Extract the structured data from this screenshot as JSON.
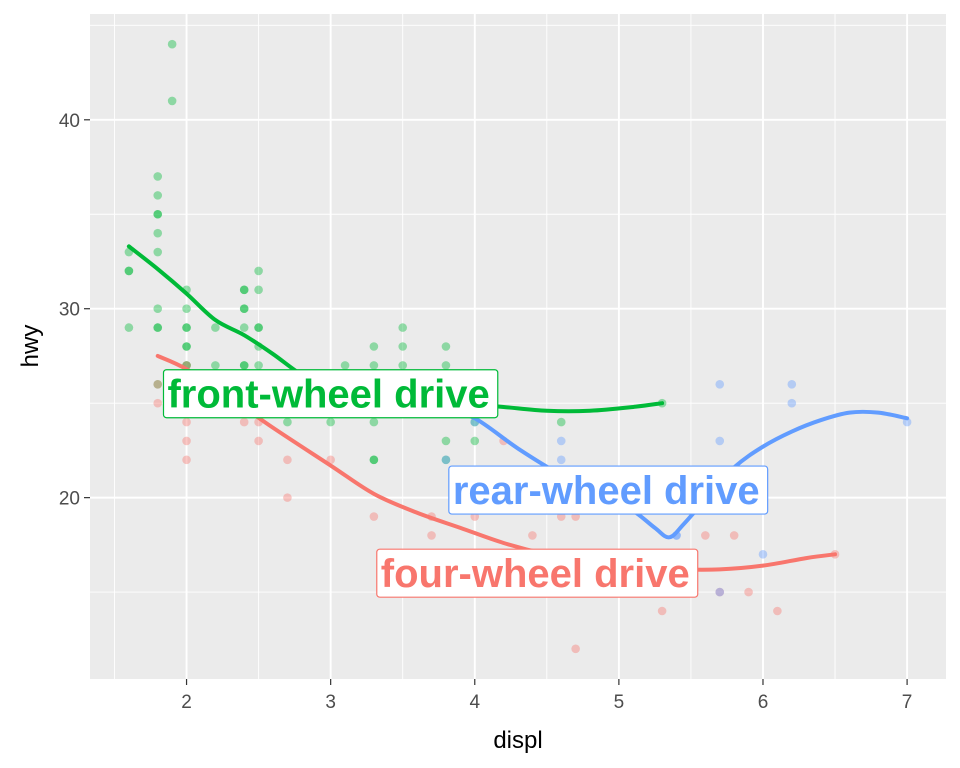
{
  "chart_data": {
    "type": "scatter",
    "xlabel": "displ",
    "ylabel": "hwy",
    "xlim": [
      1.33,
      7.27
    ],
    "ylim": [
      10.4,
      45.6
    ],
    "x_ticks": [
      2,
      3,
      4,
      5,
      6,
      7
    ],
    "y_ticks": [
      20,
      30,
      40
    ],
    "grid": true,
    "legend": "none",
    "series": [
      {
        "color": "#00BA38",
        "points": [
          [
            1.6,
            33
          ],
          [
            1.6,
            32
          ],
          [
            1.6,
            32
          ],
          [
            1.6,
            29
          ],
          [
            1.8,
            37
          ],
          [
            1.8,
            36
          ],
          [
            1.8,
            35
          ],
          [
            1.8,
            35
          ],
          [
            1.8,
            34
          ],
          [
            1.8,
            33
          ],
          [
            1.8,
            30
          ],
          [
            1.8,
            29
          ],
          [
            1.8,
            29
          ],
          [
            1.8,
            26
          ],
          [
            1.9,
            44
          ],
          [
            1.9,
            41
          ],
          [
            2.0,
            31
          ],
          [
            2.0,
            30
          ],
          [
            2.0,
            29
          ],
          [
            2.0,
            29
          ],
          [
            2.0,
            28
          ],
          [
            2.0,
            28
          ],
          [
            2.0,
            27
          ],
          [
            2.0,
            27
          ],
          [
            2.0,
            26
          ],
          [
            2.2,
            29
          ],
          [
            2.2,
            27
          ],
          [
            2.2,
            26
          ],
          [
            2.4,
            31
          ],
          [
            2.4,
            31
          ],
          [
            2.4,
            30
          ],
          [
            2.4,
            30
          ],
          [
            2.4,
            29
          ],
          [
            2.4,
            27
          ],
          [
            2.4,
            27
          ],
          [
            2.5,
            32
          ],
          [
            2.5,
            31
          ],
          [
            2.5,
            29
          ],
          [
            2.5,
            29
          ],
          [
            2.5,
            28
          ],
          [
            2.5,
            27
          ],
          [
            2.5,
            26
          ],
          [
            2.5,
            25
          ],
          [
            2.7,
            26
          ],
          [
            2.7,
            24
          ],
          [
            3.0,
            26
          ],
          [
            3.0,
            24
          ],
          [
            3.1,
            27
          ],
          [
            3.1,
            26
          ],
          [
            3.3,
            28
          ],
          [
            3.3,
            27
          ],
          [
            3.3,
            26
          ],
          [
            3.3,
            24
          ],
          [
            3.3,
            22
          ],
          [
            3.3,
            22
          ],
          [
            3.5,
            29
          ],
          [
            3.5,
            28
          ],
          [
            3.5,
            27
          ],
          [
            3.5,
            26
          ],
          [
            3.8,
            28
          ],
          [
            3.8,
            27
          ],
          [
            3.8,
            26
          ],
          [
            3.8,
            23
          ],
          [
            3.8,
            22
          ],
          [
            4.0,
            24
          ],
          [
            4.0,
            23
          ],
          [
            4.6,
            24
          ],
          [
            5.3,
            25
          ]
        ],
        "smooth": [
          [
            1.6,
            33.3
          ],
          [
            1.8,
            32.1
          ],
          [
            2.0,
            30.8
          ],
          [
            2.2,
            29.4
          ],
          [
            2.4,
            28.6
          ],
          [
            2.6,
            27.6
          ],
          [
            2.8,
            26.5
          ],
          [
            3.0,
            25.8
          ],
          [
            3.3,
            25.4
          ],
          [
            3.6,
            25.2
          ],
          [
            3.9,
            25.0
          ],
          [
            4.2,
            24.8
          ],
          [
            4.5,
            24.6
          ],
          [
            4.8,
            24.6
          ],
          [
            5.1,
            24.8
          ],
          [
            5.3,
            25.0
          ]
        ]
      },
      {
        "color": "#F8766D",
        "points": [
          [
            1.8,
            26
          ],
          [
            1.8,
            25
          ],
          [
            2.0,
            27
          ],
          [
            2.0,
            25
          ],
          [
            2.0,
            24
          ],
          [
            2.0,
            23
          ],
          [
            2.0,
            22
          ],
          [
            2.2,
            26
          ],
          [
            2.2,
            25
          ],
          [
            2.4,
            25
          ],
          [
            2.4,
            24
          ],
          [
            2.5,
            25
          ],
          [
            2.5,
            24
          ],
          [
            2.5,
            23
          ],
          [
            2.7,
            22
          ],
          [
            2.7,
            20
          ],
          [
            3.0,
            22
          ],
          [
            3.3,
            19
          ],
          [
            3.7,
            19
          ],
          [
            3.7,
            18
          ],
          [
            4.0,
            19
          ],
          [
            4.0,
            17
          ],
          [
            4.0,
            15
          ],
          [
            4.2,
            23
          ],
          [
            4.2,
            17
          ],
          [
            4.4,
            18
          ],
          [
            4.6,
            19
          ],
          [
            4.6,
            17
          ],
          [
            4.6,
            16
          ],
          [
            4.6,
            15
          ],
          [
            4.7,
            19
          ],
          [
            4.7,
            16
          ],
          [
            4.7,
            15
          ],
          [
            4.7,
            12
          ],
          [
            5.0,
            17
          ],
          [
            5.2,
            15
          ],
          [
            5.3,
            17
          ],
          [
            5.3,
            16
          ],
          [
            5.4,
            15
          ],
          [
            5.5,
            15
          ],
          [
            5.6,
            18
          ],
          [
            5.7,
            15
          ],
          [
            5.8,
            18
          ],
          [
            5.9,
            15
          ],
          [
            6.1,
            14
          ],
          [
            6.5,
            17
          ],
          [
            5.3,
            14
          ]
        ],
        "smooth": [
          [
            1.8,
            27.5
          ],
          [
            2.0,
            26.8
          ],
          [
            2.3,
            25.3
          ],
          [
            2.6,
            23.7
          ],
          [
            3.0,
            21.7
          ],
          [
            3.3,
            20.2
          ],
          [
            3.6,
            19.2
          ],
          [
            3.9,
            18.4
          ],
          [
            4.2,
            17.6
          ],
          [
            4.5,
            17.0
          ],
          [
            4.8,
            16.6
          ],
          [
            5.1,
            16.3
          ],
          [
            5.4,
            16.2
          ],
          [
            5.7,
            16.2
          ],
          [
            6.0,
            16.4
          ],
          [
            6.3,
            16.8
          ],
          [
            6.5,
            17.0
          ]
        ]
      },
      {
        "color": "#619CFF",
        "points": [
          [
            3.8,
            22
          ],
          [
            4.0,
            24
          ],
          [
            4.6,
            23
          ],
          [
            4.6,
            21
          ],
          [
            4.6,
            22
          ],
          [
            5.0,
            21
          ],
          [
            5.4,
            18
          ],
          [
            5.4,
            18
          ],
          [
            5.7,
            23
          ],
          [
            5.7,
            26
          ],
          [
            5.7,
            15
          ],
          [
            6.0,
            17
          ],
          [
            6.2,
            26
          ],
          [
            6.2,
            25
          ],
          [
            7.0,
            24
          ]
        ],
        "smooth": [
          [
            3.8,
            24.6
          ],
          [
            4.0,
            24.2
          ],
          [
            4.3,
            22.6
          ],
          [
            4.6,
            21.2
          ],
          [
            4.9,
            20.1
          ],
          [
            5.1,
            19.3
          ],
          [
            5.25,
            18.4
          ],
          [
            5.35,
            17.9
          ],
          [
            5.45,
            18.6
          ],
          [
            5.6,
            19.9
          ],
          [
            5.8,
            21.6
          ],
          [
            6.0,
            22.7
          ],
          [
            6.2,
            23.5
          ],
          [
            6.4,
            24.1
          ],
          [
            6.6,
            24.5
          ],
          [
            6.8,
            24.5
          ],
          [
            7.0,
            24.2
          ]
        ]
      }
    ],
    "annotations": [
      {
        "text": "front-wheel drive",
        "x": 1.84,
        "y": 25.5,
        "color": "#00BA38"
      },
      {
        "text": "rear-wheel drive",
        "x": 3.82,
        "y": 20.4,
        "color": "#619CFF"
      },
      {
        "text": "four-wheel drive",
        "x": 3.32,
        "y": 16.0,
        "color": "#F8766D"
      }
    ]
  }
}
